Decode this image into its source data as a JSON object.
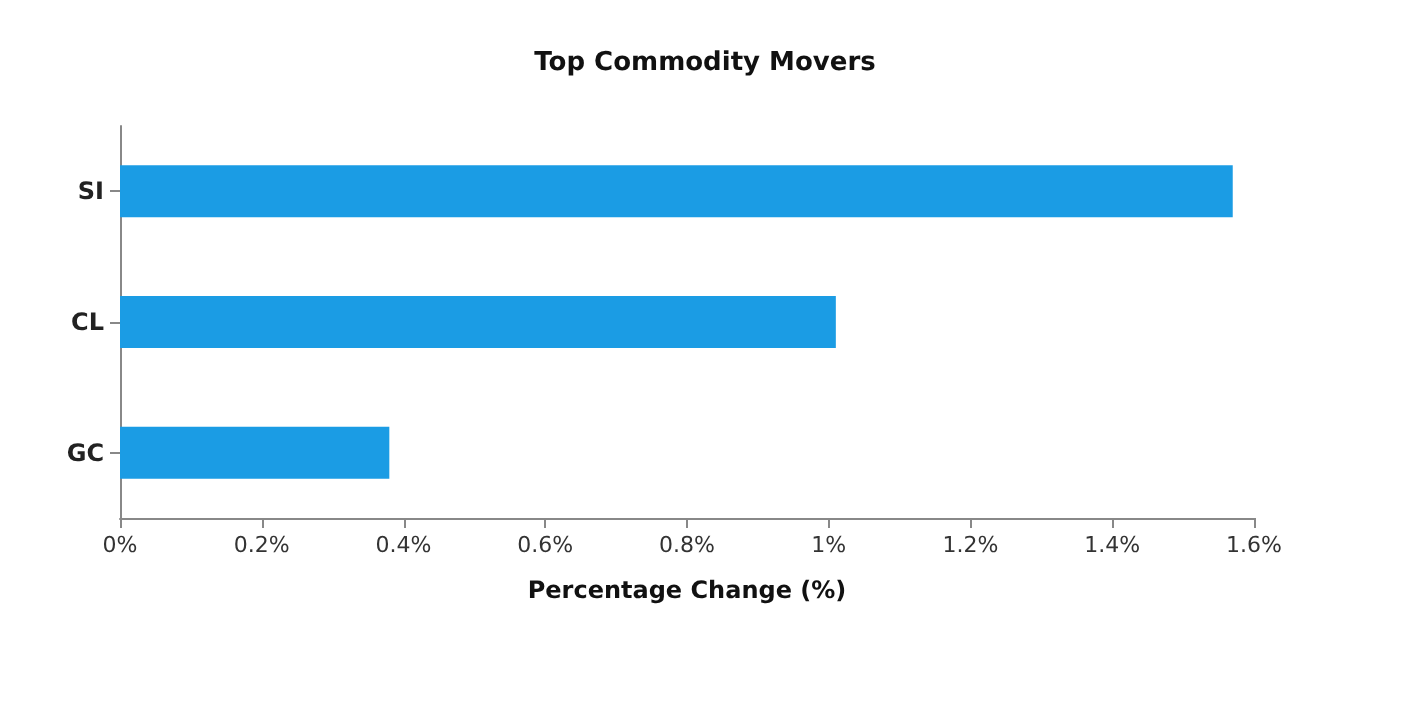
{
  "chart_data": {
    "type": "bar",
    "orientation": "horizontal",
    "title": "Top Commodity Movers",
    "xlabel": "Percentage Change (%)",
    "categories": [
      "SI",
      "CL",
      "GC"
    ],
    "values": [
      1.57,
      1.01,
      0.38
    ],
    "color": "#1b9ce4",
    "xlim": [
      0,
      1.6
    ],
    "xticks": [
      {
        "value": 0,
        "label": "0%"
      },
      {
        "value": 0.2,
        "label": "0.2%"
      },
      {
        "value": 0.4,
        "label": "0.4%"
      },
      {
        "value": 0.6,
        "label": "0.6%"
      },
      {
        "value": 0.8,
        "label": "0.8%"
      },
      {
        "value": 1,
        "label": "1%"
      },
      {
        "value": 1.2,
        "label": "1.2%"
      },
      {
        "value": 1.4,
        "label": "1.4%"
      },
      {
        "value": 1.6,
        "label": "1.6%"
      }
    ],
    "grid": false
  }
}
